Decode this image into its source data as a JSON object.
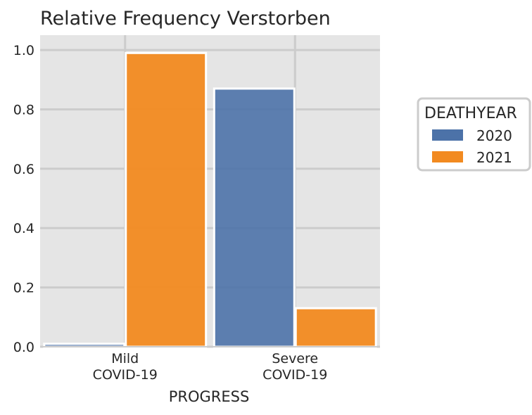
{
  "chart_data": {
    "type": "bar",
    "title": "Relative Frequency Verstorben",
    "xlabel": "PROGRESS",
    "ylabel": "",
    "categories": [
      [
        "Mild",
        "COVID-19"
      ],
      [
        "Severe",
        "COVID-19"
      ]
    ],
    "series": [
      {
        "name": "2020",
        "color": "#4c72a8",
        "values": [
          0.01,
          0.87
        ]
      },
      {
        "name": "2021",
        "color": "#f28a20",
        "values": [
          0.99,
          0.13
        ]
      }
    ],
    "ylim": [
      0,
      1.05
    ],
    "yticks": [
      0.0,
      0.2,
      0.4,
      0.6,
      0.8,
      1.0
    ],
    "ytick_labels": [
      "0.0",
      "0.2",
      "0.4",
      "0.6",
      "0.8",
      "1.0"
    ],
    "grid": true,
    "legend_title": "DEATHYEAR",
    "legend_position": "right"
  }
}
